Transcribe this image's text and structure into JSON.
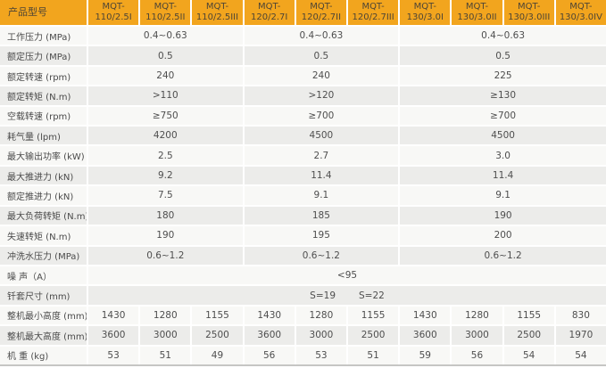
{
  "table": {
    "corner_label": "产品型号",
    "model_prefix": "MQT-",
    "model_suffixes": [
      "110/2.5I",
      "110/2.5II",
      "110/2.5III",
      "120/2.7I",
      "120/2.7II",
      "120/2.7III",
      "130/3.0I",
      "130/3.0II",
      "130/3.0III",
      "130/3.0IV"
    ],
    "group_spans": [
      3,
      3,
      4
    ],
    "rows": [
      {
        "label": "工作压力 (MPa)",
        "span": "group",
        "values": [
          "0.4~0.63",
          "0.4~0.63",
          "0.4~0.63"
        ]
      },
      {
        "label": "额定压力 (MPa)",
        "span": "group",
        "values": [
          "0.5",
          "0.5",
          "0.5"
        ]
      },
      {
        "label": "额定转速 (rpm)",
        "span": "group",
        "values": [
          "240",
          "240",
          "225"
        ]
      },
      {
        "label": "额定转矩 (N.m)",
        "span": "group",
        "values": [
          ">110",
          ">120",
          "≥130"
        ]
      },
      {
        "label": "空载转速 (rpm)",
        "span": "group",
        "values": [
          "≥750",
          "≥700",
          "≥700"
        ]
      },
      {
        "label": "耗气量 (lpm)",
        "span": "group",
        "values": [
          "4200",
          "4500",
          "4500"
        ]
      },
      {
        "label": "最大输出功率 (kW)",
        "span": "group",
        "values": [
          "2.5",
          "2.7",
          "3.0"
        ]
      },
      {
        "label": "最大推进力 (kN)",
        "span": "group",
        "values": [
          "9.2",
          "11.4",
          "11.4"
        ]
      },
      {
        "label": "额定推进力 (kN)",
        "span": "group",
        "values": [
          "7.5",
          "9.1",
          "9.1"
        ]
      },
      {
        "label": "最大负荷转矩 (N.m)",
        "span": "group",
        "values": [
          "180",
          "185",
          "190"
        ]
      },
      {
        "label": "失速转矩 (N.m)",
        "span": "group",
        "values": [
          "190",
          "195",
          "200"
        ]
      },
      {
        "label": "冲洗水压力 (MPa)",
        "span": "group",
        "values": [
          "0.6~1.2",
          "0.6~1.2",
          "0.6~1.2"
        ]
      },
      {
        "label": "噪 声（A）",
        "span": "full",
        "values": [
          "<95"
        ]
      },
      {
        "label": "钎套尺寸 (mm)",
        "span": "full",
        "values": [
          "S=19",
          "S=22"
        ]
      },
      {
        "label": "整机最小高度 (mm)",
        "span": "each",
        "values": [
          "1430",
          "1280",
          "1155",
          "1430",
          "1280",
          "1155",
          "1430",
          "1280",
          "1155",
          "830"
        ]
      },
      {
        "label": "整机最大高度 (mm)",
        "span": "each",
        "values": [
          "3600",
          "3000",
          "2500",
          "3600",
          "3000",
          "2500",
          "3600",
          "3000",
          "2500",
          "1970"
        ]
      },
      {
        "label": "机 重 (kg)",
        "span": "each",
        "values": [
          "53",
          "51",
          "49",
          "56",
          "53",
          "51",
          "59",
          "56",
          "54",
          "54"
        ]
      }
    ],
    "colors": {
      "header_bg": "#F2A51E",
      "header_text": "#4E4535",
      "row_light": "#F8F8F6",
      "row_dark": "#ECECEA",
      "value_text": "#4E4E4E",
      "label_text": "#4A4A4A",
      "gap": "#FFFFFF",
      "bottom_border": "#C6C6C4"
    }
  }
}
